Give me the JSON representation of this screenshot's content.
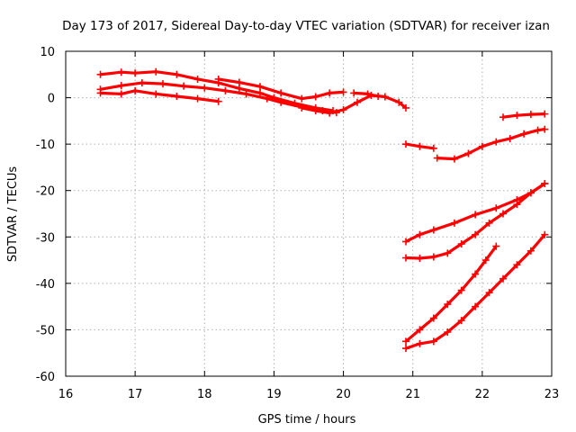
{
  "chart_data": {
    "type": "scatter",
    "title": "Day 173 of 2017, Sidereal Day-to-day VTEC variation (SDTVAR) for receiver izan",
    "xlabel": "GPS time / hours",
    "ylabel": "SDTVAR / TECUs",
    "xlim": [
      16,
      23
    ],
    "ylim": [
      -60,
      10
    ],
    "xticks": [
      16,
      17,
      18,
      19,
      20,
      21,
      22,
      23
    ],
    "yticks": [
      -60,
      -50,
      -40,
      -30,
      -20,
      -10,
      0,
      10
    ],
    "grid": true,
    "marker_color": "#ff0000",
    "series": [
      {
        "name": "s1",
        "x": [
          16.5,
          16.8,
          17.0,
          17.3,
          17.6,
          17.9,
          18.2,
          18.5,
          18.8,
          19.0,
          19.3,
          19.6,
          19.85
        ],
        "y": [
          5.0,
          5.5,
          5.3,
          5.6,
          5.0,
          4.0,
          3.2,
          2.0,
          1.0,
          0.0,
          -1.2,
          -2.2,
          -2.8
        ]
      },
      {
        "name": "s2",
        "x": [
          16.5,
          16.8,
          17.1,
          17.4,
          17.7,
          18.0,
          18.3,
          18.6,
          18.9,
          19.1,
          19.4,
          19.7,
          19.9
        ],
        "y": [
          1.8,
          2.6,
          3.2,
          3.0,
          2.5,
          2.1,
          1.5,
          0.8,
          -0.2,
          -1.0,
          -2.0,
          -2.8,
          -3.2
        ]
      },
      {
        "name": "s3",
        "x": [
          16.5,
          16.8,
          17.0,
          17.3,
          17.6,
          17.9,
          18.2
        ],
        "y": [
          1.0,
          0.8,
          1.5,
          0.8,
          0.3,
          -0.2,
          -0.8
        ]
      },
      {
        "name": "s4",
        "x": [
          18.2,
          18.5,
          18.8,
          19.1,
          19.4,
          19.6,
          19.8,
          20.0
        ],
        "y": [
          4.0,
          3.3,
          2.4,
          1.0,
          -0.2,
          0.2,
          1.0,
          1.2
        ]
      },
      {
        "name": "s5",
        "x": [
          19.4,
          19.6,
          19.8,
          20.0,
          20.2,
          20.4,
          20.6,
          20.8,
          20.9
        ],
        "y": [
          -2.2,
          -2.8,
          -3.3,
          -2.6,
          -1.0,
          0.5,
          0.2,
          -1.0,
          -2.2
        ]
      },
      {
        "name": "s6",
        "x": [
          20.15,
          20.35,
          20.5
        ],
        "y": [
          1.0,
          0.8,
          0.3
        ]
      },
      {
        "name": "s7",
        "x": [
          20.9,
          21.1,
          21.3
        ],
        "y": [
          -10.0,
          -10.5,
          -10.9
        ]
      },
      {
        "name": "s8",
        "x": [
          21.35,
          21.6,
          21.8,
          22.0,
          22.2,
          22.4,
          22.6,
          22.8,
          22.9
        ],
        "y": [
          -13.0,
          -13.2,
          -12.0,
          -10.5,
          -9.5,
          -8.8,
          -7.8,
          -7.0,
          -6.8
        ]
      },
      {
        "name": "s9",
        "x": [
          22.3,
          22.5,
          22.7,
          22.9
        ],
        "y": [
          -4.2,
          -3.8,
          -3.6,
          -3.5
        ]
      },
      {
        "name": "s10",
        "x": [
          20.9,
          21.1,
          21.3,
          21.6,
          21.9,
          22.2,
          22.5,
          22.7,
          22.9
        ],
        "y": [
          -31.0,
          -29.5,
          -28.5,
          -27.0,
          -25.2,
          -23.8,
          -22.0,
          -20.5,
          -18.5
        ]
      },
      {
        "name": "s11",
        "x": [
          20.9,
          21.1,
          21.3,
          21.5,
          21.7,
          21.9,
          22.1,
          22.3,
          22.5,
          22.7,
          22.9
        ],
        "y": [
          -34.5,
          -34.6,
          -34.3,
          -33.5,
          -31.5,
          -29.5,
          -27.0,
          -25.0,
          -23.0,
          -20.5,
          -18.5
        ]
      },
      {
        "name": "s12",
        "x": [
          20.9,
          21.1,
          21.3,
          21.5,
          21.7,
          21.9,
          22.05,
          22.2
        ],
        "y": [
          -52.5,
          -50.0,
          -47.5,
          -44.5,
          -41.5,
          -38.0,
          -35.0,
          -32.0
        ]
      },
      {
        "name": "s13",
        "x": [
          20.9,
          21.1,
          21.3,
          21.5,
          21.7,
          21.9,
          22.1,
          22.3,
          22.5,
          22.7,
          22.9
        ],
        "y": [
          -54.0,
          -53.0,
          -52.5,
          -50.5,
          -48.0,
          -45.0,
          -42.0,
          -39.0,
          -36.0,
          -33.0,
          -29.5
        ]
      }
    ]
  }
}
